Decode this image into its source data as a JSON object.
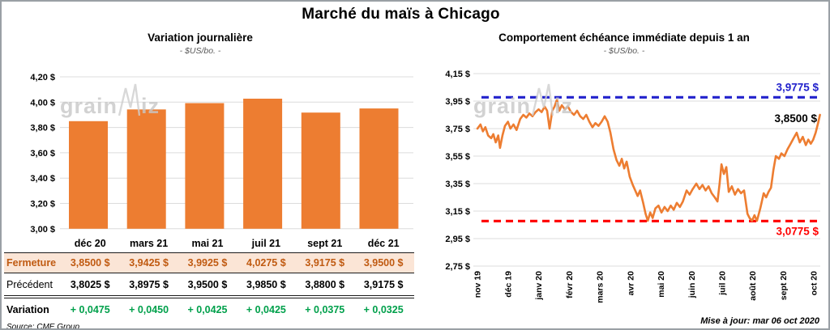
{
  "title": "Marché du maïs à Chicago",
  "watermark": "grainwiz",
  "footer": "Mise à jour: mar 06 oct 2020",
  "table": {
    "col_headers": [
      "déc 20",
      "mars 21",
      "mai 21",
      "juil 21",
      "sept 21",
      "déc 21"
    ],
    "rows": [
      {
        "label": "Fermeture",
        "style": "row-fermeture",
        "values": [
          "3,8500 $",
          "3,9425 $",
          "3,9925 $",
          "4,0275 $",
          "3,9175 $",
          "3,9500 $"
        ]
      },
      {
        "label": "Précédent",
        "style": "row-precedent",
        "values": [
          "3,8025 $",
          "3,8975 $",
          "3,9500 $",
          "3,9850 $",
          "3,8800 $",
          "3,9175 $"
        ]
      },
      {
        "label": "Variation",
        "style": "row-variation",
        "values": [
          "+ 0,0475",
          "+ 0,0450",
          "+ 0,0425",
          "+ 0,0425",
          "+ 0,0375",
          "+ 0,0325"
        ]
      }
    ],
    "source": "Source: CME Group"
  },
  "chart_data": [
    {
      "type": "bar",
      "title": "Variation journalière",
      "subtitle": "- $US/bo. -",
      "categories": [
        "déc 20",
        "mars 21",
        "mai 21",
        "juil 21",
        "sept 21",
        "déc 21"
      ],
      "values": [
        3.85,
        3.9425,
        3.9925,
        4.0275,
        3.9175,
        3.95
      ],
      "ylim": [
        3.0,
        4.2
      ],
      "ytick_step": 0.2,
      "y_tick_labels": [
        "4,20 $",
        "4,00 $",
        "3,80 $",
        "3,60 $",
        "3,40 $",
        "3,20 $",
        "3,00 $"
      ],
      "bar_color": "#ED7D31",
      "grid_color": "#DCDCDC"
    },
    {
      "type": "line",
      "title": "Comportement échéance immédiate depuis 1 an",
      "subtitle": "- $US/bo. -",
      "ylim": [
        2.75,
        4.15
      ],
      "ytick_step": 0.2,
      "y_tick_labels": [
        "4,15 $",
        "3,95 $",
        "3,75 $",
        "3,55 $",
        "3,35 $",
        "3,15 $",
        "2,95 $",
        "2,75 $"
      ],
      "x_tick_labels": [
        "nov 19",
        "déc 19",
        "janv 20",
        "févr 20",
        "mars 20",
        "avr 20",
        "mai 20",
        "juin 20",
        "juil 20",
        "août 20",
        "sept 20",
        "oct 20"
      ],
      "line_color": "#ED7D31",
      "grid_color": "#DCDCDC",
      "high_line": {
        "value": 3.9775,
        "label": "3,9775 $",
        "color": "#2222CC"
      },
      "low_line": {
        "value": 3.0775,
        "label": "3,0775 $",
        "color": "#FF0000"
      },
      "last_point": {
        "value": 3.85,
        "label": "3,8500 $",
        "color": "#000000"
      },
      "points": [
        [
          0,
          3.75
        ],
        [
          0.1,
          3.78
        ],
        [
          0.18,
          3.73
        ],
        [
          0.26,
          3.76
        ],
        [
          0.35,
          3.7
        ],
        [
          0.45,
          3.68
        ],
        [
          0.52,
          3.71
        ],
        [
          0.6,
          3.65
        ],
        [
          0.68,
          3.7
        ],
        [
          0.74,
          3.61
        ],
        [
          0.82,
          3.7
        ],
        [
          0.9,
          3.77
        ],
        [
          1.0,
          3.8
        ],
        [
          1.08,
          3.75
        ],
        [
          1.18,
          3.78
        ],
        [
          1.28,
          3.74
        ],
        [
          1.4,
          3.82
        ],
        [
          1.5,
          3.85
        ],
        [
          1.6,
          3.83
        ],
        [
          1.7,
          3.86
        ],
        [
          1.8,
          3.84
        ],
        [
          1.9,
          3.87
        ],
        [
          2.0,
          3.89
        ],
        [
          2.1,
          3.87
        ],
        [
          2.2,
          3.91
        ],
        [
          2.28,
          3.88
        ],
        [
          2.36,
          3.75
        ],
        [
          2.45,
          3.88
        ],
        [
          2.52,
          3.91
        ],
        [
          2.6,
          3.96
        ],
        [
          2.68,
          3.88
        ],
        [
          2.76,
          3.92
        ],
        [
          2.86,
          3.89
        ],
        [
          2.96,
          3.91
        ],
        [
          3.06,
          3.87
        ],
        [
          3.16,
          3.85
        ],
        [
          3.26,
          3.88
        ],
        [
          3.36,
          3.84
        ],
        [
          3.46,
          3.82
        ],
        [
          3.56,
          3.85
        ],
        [
          3.66,
          3.8
        ],
        [
          3.76,
          3.76
        ],
        [
          3.86,
          3.79
        ],
        [
          3.96,
          3.77
        ],
        [
          4.06,
          3.8
        ],
        [
          4.16,
          3.84
        ],
        [
          4.26,
          3.8
        ],
        [
          4.35,
          3.72
        ],
        [
          4.45,
          3.6
        ],
        [
          4.55,
          3.52
        ],
        [
          4.64,
          3.48
        ],
        [
          4.72,
          3.53
        ],
        [
          4.8,
          3.46
        ],
        [
          4.88,
          3.51
        ],
        [
          4.98,
          3.4
        ],
        [
          5.08,
          3.34
        ],
        [
          5.16,
          3.3
        ],
        [
          5.24,
          3.26
        ],
        [
          5.32,
          3.3
        ],
        [
          5.42,
          3.21
        ],
        [
          5.5,
          3.13
        ],
        [
          5.57,
          3.08
        ],
        [
          5.65,
          3.14
        ],
        [
          5.73,
          3.1
        ],
        [
          5.82,
          3.17
        ],
        [
          5.92,
          3.19
        ],
        [
          6.02,
          3.14
        ],
        [
          6.12,
          3.18
        ],
        [
          6.22,
          3.15
        ],
        [
          6.32,
          3.19
        ],
        [
          6.42,
          3.16
        ],
        [
          6.52,
          3.21
        ],
        [
          6.62,
          3.18
        ],
        [
          6.72,
          3.22
        ],
        [
          6.84,
          3.3
        ],
        [
          6.94,
          3.27
        ],
        [
          7.04,
          3.31
        ],
        [
          7.16,
          3.35
        ],
        [
          7.26,
          3.31
        ],
        [
          7.36,
          3.34
        ],
        [
          7.46,
          3.3
        ],
        [
          7.56,
          3.33
        ],
        [
          7.66,
          3.28
        ],
        [
          7.76,
          3.25
        ],
        [
          7.85,
          3.22
        ],
        [
          7.92,
          3.35
        ],
        [
          7.98,
          3.49
        ],
        [
          8.06,
          3.42
        ],
        [
          8.14,
          3.47
        ],
        [
          8.22,
          3.29
        ],
        [
          8.32,
          3.33
        ],
        [
          8.42,
          3.27
        ],
        [
          8.52,
          3.31
        ],
        [
          8.62,
          3.28
        ],
        [
          8.72,
          3.3
        ],
        [
          8.83,
          3.13
        ],
        [
          8.9,
          3.1
        ],
        [
          8.98,
          3.08
        ],
        [
          9.06,
          3.12
        ],
        [
          9.14,
          3.08
        ],
        [
          9.25,
          3.17
        ],
        [
          9.36,
          3.28
        ],
        [
          9.44,
          3.25
        ],
        [
          9.52,
          3.29
        ],
        [
          9.6,
          3.32
        ],
        [
          9.68,
          3.45
        ],
        [
          9.76,
          3.55
        ],
        [
          9.86,
          3.53
        ],
        [
          9.94,
          3.57
        ],
        [
          10.04,
          3.55
        ],
        [
          10.14,
          3.6
        ],
        [
          10.24,
          3.64
        ],
        [
          10.34,
          3.68
        ],
        [
          10.44,
          3.72
        ],
        [
          10.54,
          3.65
        ],
        [
          10.64,
          3.69
        ],
        [
          10.74,
          3.63
        ],
        [
          10.82,
          3.67
        ],
        [
          10.9,
          3.64
        ],
        [
          10.98,
          3.67
        ],
        [
          11.06,
          3.72
        ],
        [
          11.14,
          3.79
        ],
        [
          11.2,
          3.85
        ]
      ]
    }
  ]
}
